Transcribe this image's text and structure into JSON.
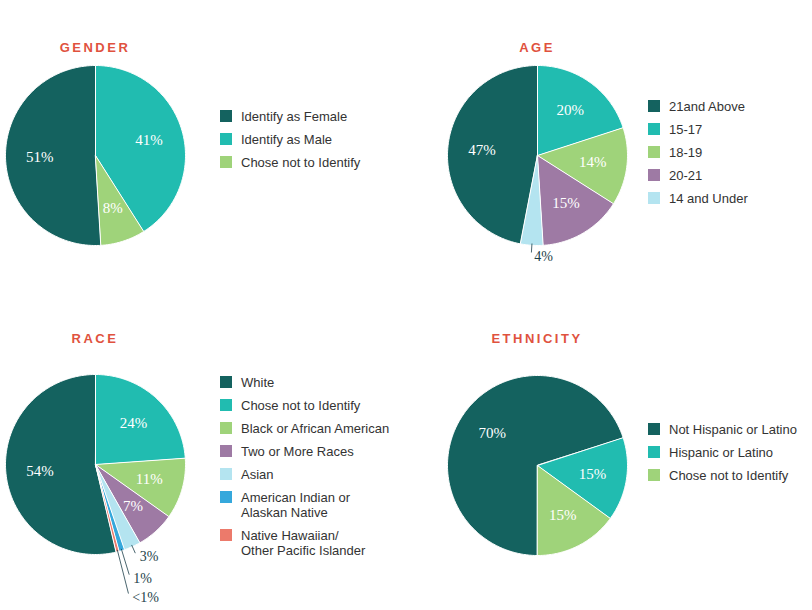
{
  "chart_data": [
    {
      "type": "pie",
      "title": "GENDER",
      "categories": [
        "Identify as Female",
        "Identify as Male",
        "Chose not to Identify"
      ],
      "values": [
        51,
        41,
        8
      ],
      "value_labels": [
        "51%",
        "41%",
        "8%"
      ],
      "colors": [
        "#14625f",
        "#21bcb0",
        "#9fd37a"
      ],
      "data_labels": true,
      "legend": "right"
    },
    {
      "type": "pie",
      "title": "AGE",
      "categories": [
        "21and Above",
        "15-17",
        "18-19",
        "20-21",
        "14 and Under"
      ],
      "values": [
        47,
        20,
        14,
        15,
        4
      ],
      "value_labels": [
        "47%",
        "20%",
        "14%",
        "15%",
        "4%"
      ],
      "colors": [
        "#14625f",
        "#21bcb0",
        "#9fd37a",
        "#9e7aa4",
        "#b4e4f0"
      ],
      "data_labels": true,
      "legend": "right"
    },
    {
      "type": "pie",
      "title": "RACE",
      "categories": [
        "White",
        "Chose not to Identify",
        "Black or African American",
        "Two or More Races",
        "Asian",
        "American Indian or\nAlaskan Native",
        "Native Hawaiian/\nOther Pacific Islander"
      ],
      "values": [
        54,
        24,
        11,
        7,
        3,
        1,
        0.5
      ],
      "value_labels": [
        "54%",
        "24%",
        "11%",
        "7%",
        "3%",
        "1%",
        "<1%"
      ],
      "colors": [
        "#14625f",
        "#21bcb0",
        "#9fd37a",
        "#9e7aa4",
        "#b4e4f0",
        "#35a8dc",
        "#ec7a6b"
      ],
      "data_labels": true,
      "legend": "right"
    },
    {
      "type": "pie",
      "title": "ETHNICITY",
      "categories": [
        "Not Hispanic or Latino",
        "Hispanic or Latino",
        "Chose not to Identify"
      ],
      "values": [
        70,
        15,
        15
      ],
      "value_labels": [
        "70%",
        "15%",
        "15%"
      ],
      "colors": [
        "#14625f",
        "#21bcb0",
        "#9fd37a"
      ],
      "data_labels": true,
      "legend": "right"
    }
  ]
}
